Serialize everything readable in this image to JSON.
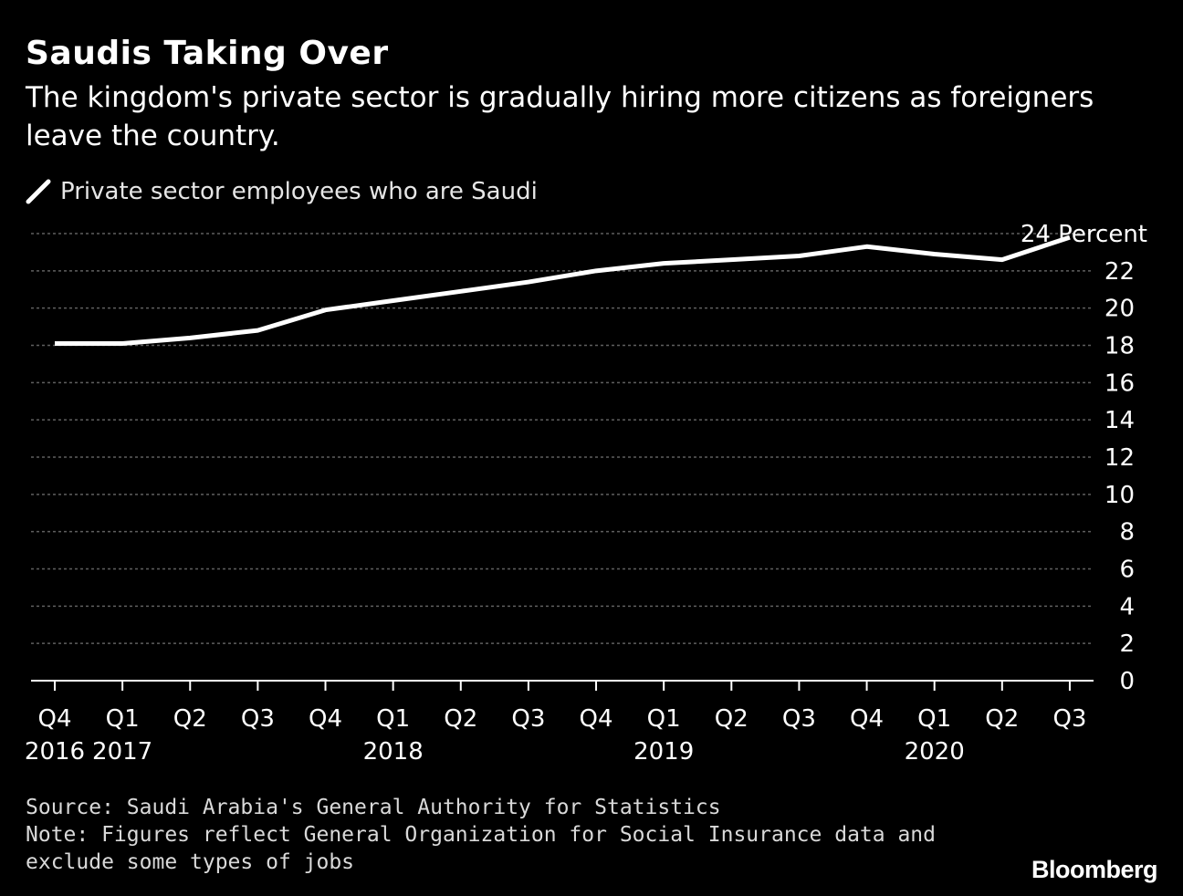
{
  "colors": {
    "background": "#000000",
    "line": "#ffffff",
    "grid": "#5f5f5f",
    "text": "#ffffff"
  },
  "brand": "Bloomberg",
  "footer": {
    "source": "Source: Saudi Arabia's General Authority for Statistics",
    "note": "Note: Figures reflect General Organization for Social Insurance data and exclude some types of jobs"
  },
  "chart_data": {
    "type": "line",
    "title": "Saudis Taking Over",
    "subtitle": "The kingdom's private sector is gradually hiring more citizens as foreigners leave the country.",
    "categories": [
      "Q4",
      "Q1",
      "Q2",
      "Q3",
      "Q4",
      "Q1",
      "Q2",
      "Q3",
      "Q4",
      "Q1",
      "Q2",
      "Q3",
      "Q4",
      "Q1",
      "Q2",
      "Q3"
    ],
    "year_labels": [
      {
        "index": 0,
        "label": "2016"
      },
      {
        "index": 1,
        "label": "2017"
      },
      {
        "index": 5,
        "label": "2018"
      },
      {
        "index": 9,
        "label": "2019"
      },
      {
        "index": 13,
        "label": "2020"
      }
    ],
    "series": [
      {
        "name": "Private sector employees who are Saudi",
        "values": [
          18.1,
          18.1,
          18.4,
          18.8,
          19.9,
          20.4,
          20.9,
          21.4,
          22.0,
          22.4,
          22.6,
          22.8,
          23.3,
          22.9,
          22.6,
          23.8
        ]
      }
    ],
    "ylim": [
      0,
      24
    ],
    "yticks": [
      0,
      2,
      4,
      6,
      8,
      10,
      12,
      14,
      16,
      18,
      20,
      22,
      24
    ],
    "top_tick_label": "24 Percent",
    "xlabel": "",
    "ylabel": "Percent",
    "grid": true,
    "legend_position": "top-left"
  }
}
